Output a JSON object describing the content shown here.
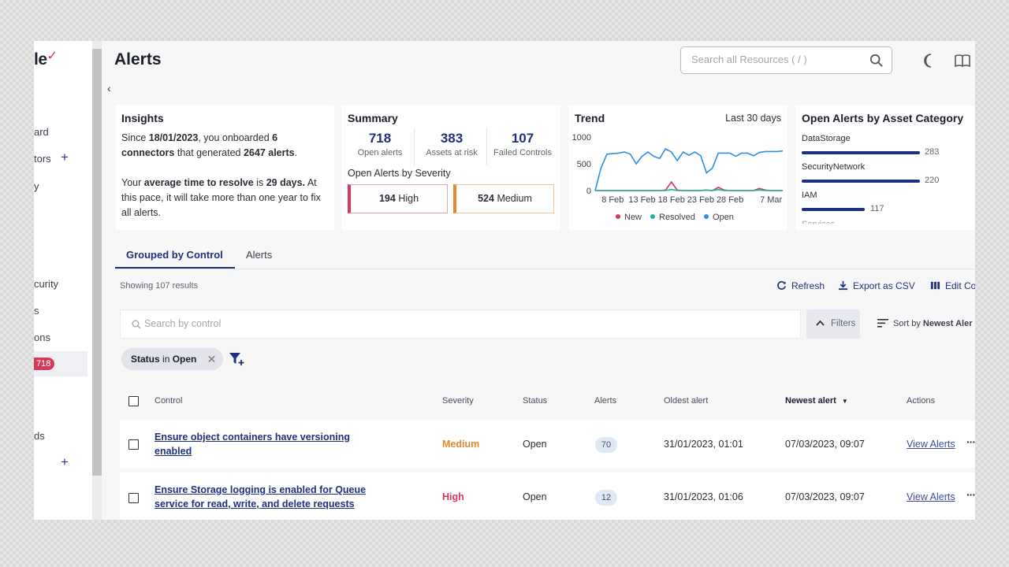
{
  "app": {
    "logo_text": "le",
    "title": "Alerts",
    "search_placeholder": "Search all Resources ( / )"
  },
  "sidebar": {
    "items": [
      {
        "label": "ard"
      },
      {
        "label": "tors"
      },
      {
        "label": "y"
      },
      {
        "label": "curity"
      },
      {
        "label": "s"
      },
      {
        "label": "ons"
      },
      {
        "label": "ds"
      }
    ],
    "alerts_badge": "718"
  },
  "insights": {
    "title": "Insights",
    "p1_a": "Since ",
    "p1_date": "18/01/2023",
    "p1_b": ", you onboarded ",
    "p1_count": "6",
    "p1_connectors": "connectors",
    "p1_c": " that generated ",
    "p1_alerts": "2647 alerts",
    "p1_d": ".",
    "p2_a": "Your ",
    "p2_metric": "average time to resolve",
    "p2_b": " is ",
    "p2_days": "29 days.",
    "p2_c": " At this pace, it will take more than one year to fix all alerts."
  },
  "summary": {
    "title": "Summary",
    "stats": [
      {
        "value": "718",
        "label": "Open alerts"
      },
      {
        "value": "383",
        "label": "Assets at risk"
      },
      {
        "value": "107",
        "label": "Failed Controls"
      }
    ],
    "severity_title": "Open Alerts by Severity",
    "high_count": "194",
    "high_label": "High",
    "medium_count": "524",
    "medium_label": "Medium",
    "colors": {
      "high": "#d63a5b",
      "medium": "#e8852f"
    }
  },
  "trend": {
    "title": "Trend",
    "range": "Last 30 days",
    "y_ticks": [
      "1000",
      "500",
      "0"
    ],
    "x_ticks": [
      "8 Feb",
      "13 Feb",
      "18 Feb",
      "23 Feb",
      "28 Feb",
      "7 Mar"
    ],
    "legend": [
      {
        "label": "New",
        "color": "#d63a5b"
      },
      {
        "label": "Resolved",
        "color": "#1fb59a"
      },
      {
        "label": "Open",
        "color": "#2f8ee5"
      }
    ]
  },
  "chart_data": {
    "type": "line",
    "title": "Trend",
    "x": [
      "5 Feb",
      "6 Feb",
      "7 Feb",
      "8 Feb",
      "9 Feb",
      "10 Feb",
      "11 Feb",
      "12 Feb",
      "13 Feb",
      "14 Feb",
      "15 Feb",
      "16 Feb",
      "17 Feb",
      "18 Feb",
      "19 Feb",
      "20 Feb",
      "21 Feb",
      "22 Feb",
      "23 Feb",
      "24 Feb",
      "25 Feb",
      "26 Feb",
      "27 Feb",
      "28 Feb",
      "1 Mar",
      "2 Mar",
      "3 Mar",
      "4 Mar",
      "5 Mar",
      "6 Mar",
      "7 Mar",
      "8 Mar",
      "9 Mar"
    ],
    "ylim": [
      0,
      1000
    ],
    "series": [
      {
        "name": "Open",
        "values": [
          0,
          420,
          680,
          690,
          700,
          720,
          680,
          500,
          640,
          720,
          640,
          600,
          780,
          720,
          560,
          720,
          660,
          720,
          650,
          330,
          420,
          700,
          700,
          700,
          640,
          700,
          700,
          650,
          710,
          730,
          730,
          730,
          740
        ]
      },
      {
        "name": "New",
        "values": [
          0,
          0,
          0,
          0,
          0,
          0,
          0,
          0,
          0,
          0,
          0,
          0,
          10,
          160,
          10,
          0,
          0,
          0,
          0,
          10,
          0,
          60,
          10,
          0,
          0,
          0,
          0,
          0,
          40,
          10,
          0,
          0,
          0
        ]
      },
      {
        "name": "Resolved",
        "values": [
          0,
          0,
          0,
          0,
          0,
          0,
          0,
          0,
          0,
          0,
          0,
          0,
          0,
          20,
          0,
          0,
          0,
          0,
          0,
          10,
          0,
          20,
          0,
          0,
          0,
          0,
          0,
          0,
          10,
          0,
          0,
          0,
          0
        ]
      }
    ]
  },
  "categories": {
    "title": "Open Alerts by Asset Category",
    "items": [
      {
        "name": "DataStorage",
        "value": "283",
        "fraction": 1.0
      },
      {
        "name": "SecurityNetwork",
        "value": "220",
        "fraction": 1.0
      },
      {
        "name": "IAM",
        "value": "117",
        "fraction": 0.53
      },
      {
        "name": "Services",
        "value": "",
        "fraction": 0.3
      }
    ]
  },
  "tabs": {
    "grouped": "Grouped by Control",
    "alerts": "Alerts"
  },
  "results_text": "Showing 107 results",
  "toolbar": {
    "refresh": "Refresh",
    "export": "Export as CSV",
    "edit": "Edit Co"
  },
  "control_search_placeholder": "Search by control",
  "filters_label": "Filters",
  "sort": {
    "prefix": "Sort by ",
    "value": "Newest Aler"
  },
  "chip": {
    "field": "Status",
    "op": " in ",
    "value": "Open"
  },
  "table": {
    "headers": {
      "control": "Control",
      "severity": "Severity",
      "status": "Status",
      "alerts": "Alerts",
      "oldest": "Oldest alert",
      "newest": "Newest alert",
      "actions": "Actions"
    },
    "rows": [
      {
        "control": "Ensure object containers have versioning enabled",
        "severity": "Medium",
        "status": "Open",
        "alerts": "70",
        "oldest": "31/01/2023, 01:01",
        "newest": "07/03/2023, 09:07",
        "action": "View Alerts"
      },
      {
        "control": "Ensure Storage logging is enabled for Queue service for read, write, and delete requests",
        "severity": "High",
        "status": "Open",
        "alerts": "12",
        "oldest": "31/01/2023, 01:06",
        "newest": "07/03/2023, 09:07",
        "action": "View Alerts"
      }
    ]
  }
}
